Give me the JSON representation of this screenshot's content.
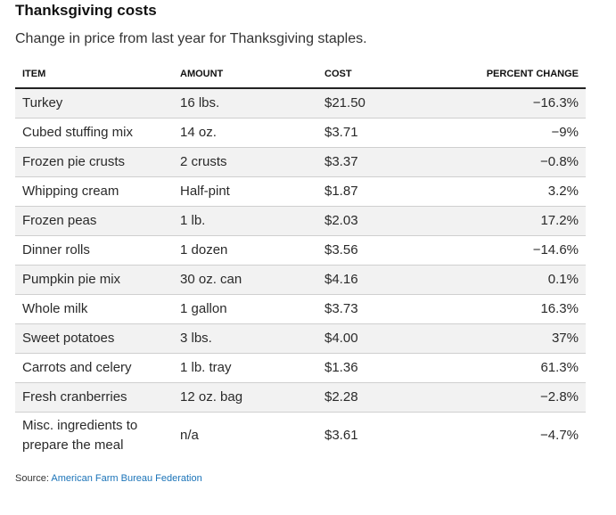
{
  "header": {
    "title": "Thanksgiving costs",
    "subtitle": "Change in price from last year for Thanksgiving staples."
  },
  "table": {
    "columns": [
      "ITEM",
      "AMOUNT",
      "COST",
      "PERCENT CHANGE"
    ],
    "rows": [
      [
        "Turkey",
        "16 lbs.",
        "$21.50",
        "−16.3%"
      ],
      [
        "Cubed stuffing mix",
        "14 oz.",
        "$3.71",
        "−9%"
      ],
      [
        "Frozen pie crusts",
        "2 crusts",
        "$3.37",
        "−0.8%"
      ],
      [
        "Whipping cream",
        "Half-pint",
        "$1.87",
        "3.2%"
      ],
      [
        "Frozen peas",
        "1 lb.",
        "$2.03",
        "17.2%"
      ],
      [
        "Dinner rolls",
        "1 dozen",
        "$3.56",
        "−14.6%"
      ],
      [
        "Pumpkin pie mix",
        "30 oz. can",
        "$4.16",
        "0.1%"
      ],
      [
        "Whole milk",
        "1 gallon",
        "$3.73",
        "16.3%"
      ],
      [
        "Sweet potatoes",
        "3 lbs.",
        "$4.00",
        "37%"
      ],
      [
        "Carrots and celery",
        "1 lb. tray",
        "$1.36",
        "61.3%"
      ],
      [
        "Fresh cranberries",
        "12 oz. bag",
        "$2.28",
        "−2.8%"
      ],
      [
        "Misc. ingredients to prepare the meal",
        "n/a",
        "$3.61",
        "−4.7%"
      ]
    ]
  },
  "footer": {
    "source_label": "Source:",
    "source_link": "American Farm Bureau Federation"
  }
}
